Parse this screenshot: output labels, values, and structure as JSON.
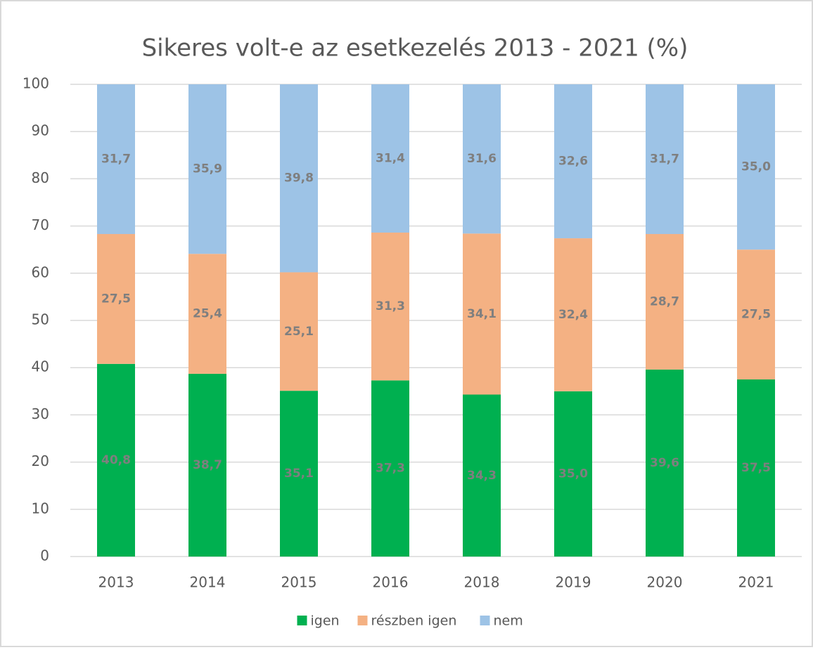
{
  "chart_data": {
    "type": "stacked_bar",
    "title": "Sikeres volt-e az esetkezelés 2013 - 2021 (%)",
    "categories": [
      "2013",
      "2014",
      "2015",
      "2016",
      "2018",
      "2019",
      "2020",
      "2021"
    ],
    "series": [
      {
        "name": "igen",
        "color": "#00b050",
        "values": [
          40.8,
          38.7,
          35.1,
          37.3,
          34.3,
          35.0,
          39.6,
          37.5
        ],
        "value_labels": [
          "40,8",
          "38,7",
          "35,1",
          "37,3",
          "34,3",
          "35,0",
          "39,6",
          "37,5"
        ]
      },
      {
        "name": "részben igen",
        "color": "#f4b183",
        "values": [
          27.5,
          25.4,
          25.1,
          31.3,
          34.1,
          32.4,
          28.7,
          27.5
        ],
        "value_labels": [
          "27,5",
          "25,4",
          "25,1",
          "31,3",
          "34,1",
          "32,4",
          "28,7",
          "27,5"
        ]
      },
      {
        "name": "nem",
        "color": "#9dc3e6",
        "values": [
          31.7,
          35.9,
          39.8,
          31.4,
          31.6,
          32.6,
          31.7,
          35.0
        ],
        "value_labels": [
          "31,7",
          "35,9",
          "39,8",
          "31,4",
          "31,6",
          "32,6",
          "31,7",
          "35,0"
        ]
      }
    ],
    "ylim": [
      0,
      100
    ],
    "yticks": [
      0,
      10,
      20,
      30,
      40,
      50,
      60,
      70,
      80,
      90,
      100
    ],
    "grid": true,
    "legend": "bottom"
  }
}
